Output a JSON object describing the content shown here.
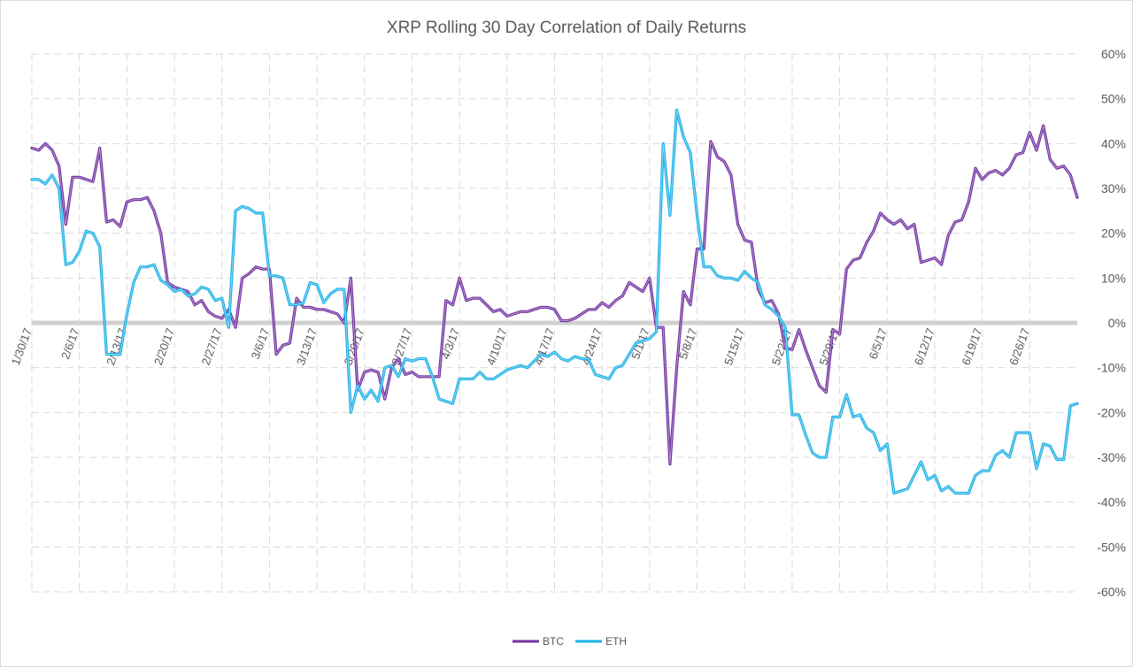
{
  "chart_data": {
    "type": "line",
    "title": "XRP Rolling 30 Day Correlation of Daily Returns",
    "xlabel": "",
    "ylabel": "",
    "x_start": "1/30/17",
    "x_end": "7/1/17",
    "x_tick_labels": [
      "1/30/17",
      "2/6/17",
      "2/13/17",
      "2/20/17",
      "2/27/17",
      "3/6/17",
      "3/13/17",
      "3/20/17",
      "3/27/17",
      "4/3/17",
      "4/10/17",
      "4/17/17",
      "4/24/17",
      "5/1/17",
      "5/8/17",
      "5/15/17",
      "5/22/17",
      "5/29/17",
      "6/5/17",
      "6/12/17",
      "6/19/17",
      "6/26/17"
    ],
    "y_tick_labels": [
      "60%",
      "50%",
      "40%",
      "30%",
      "20%",
      "10%",
      "0%",
      "-10%",
      "-20%",
      "-30%",
      "-40%",
      "-50%",
      "-60%"
    ],
    "ylim": [
      -60,
      60
    ],
    "y_unit": "%",
    "grid": true,
    "legend_position": "bottom-center",
    "series": [
      {
        "name": "BTC",
        "color": "#7030a0",
        "values": [
          39,
          38.5,
          40,
          38.5,
          35,
          22,
          32.5,
          32.5,
          32,
          31.5,
          39,
          22.5,
          23,
          21.5,
          27,
          27.5,
          27.5,
          28,
          25,
          20,
          9,
          8,
          7.5,
          7,
          4,
          5,
          2.5,
          1.5,
          1,
          3,
          -1,
          10,
          11,
          12.5,
          12,
          12,
          -7,
          -5,
          -4.5,
          5.5,
          3.5,
          3.5,
          3,
          3,
          2.5,
          2,
          0,
          10,
          -15,
          -11,
          -10.5,
          -11,
          -17,
          -10,
          -8,
          -11.5,
          -11,
          -12,
          -12,
          -12,
          -12,
          5,
          4,
          10,
          5,
          5.5,
          5.5,
          4,
          2.5,
          3,
          1.5,
          2,
          2.5,
          2.5,
          3,
          3.5,
          3.5,
          3,
          0.5,
          0.5,
          1,
          2,
          3,
          3,
          4.5,
          3.5,
          5,
          6,
          9,
          8,
          7,
          10,
          -1,
          -1,
          -31.5,
          -10,
          7,
          4,
          16.5,
          16.5,
          40.5,
          37,
          36,
          33,
          22,
          18.5,
          18,
          7.5,
          4.5,
          5,
          2,
          -5.5,
          -6,
          -1.5,
          -6,
          -10,
          -14,
          -15.5,
          -1.5,
          -2.5,
          12,
          14,
          14.5,
          18,
          20.5,
          24.5,
          23,
          22,
          23,
          21,
          22,
          13.5,
          14,
          14.5,
          13,
          19.5,
          22.5,
          23,
          27,
          34.5,
          32,
          33.5,
          34,
          33,
          34.5,
          37.5,
          38,
          42.5,
          38.5,
          44,
          36.5,
          34.5,
          35,
          33,
          28
        ]
      },
      {
        "name": "ETH",
        "color": "#1ab0e6",
        "values": [
          32,
          32,
          31,
          33,
          30,
          13,
          13.5,
          16,
          20.5,
          20,
          17,
          -7,
          -7,
          -7,
          2,
          9,
          12.5,
          12.5,
          13,
          9.5,
          8.5,
          7,
          7.5,
          6,
          6.5,
          8,
          7.5,
          5,
          5.5,
          -1,
          25,
          26,
          25.5,
          24.5,
          24.5,
          10.5,
          10.5,
          10,
          4,
          4,
          4.5,
          9,
          8.5,
          4.5,
          6.5,
          7.5,
          7.5,
          -20,
          -14,
          -17,
          -15,
          -17.5,
          -10,
          -9.5,
          -12,
          -8,
          -8.5,
          -8,
          -8,
          -12,
          -17,
          -17.5,
          -18,
          -12.5,
          -12.5,
          -12.5,
          -11,
          -12.5,
          -12.5,
          -11.5,
          -10.5,
          -10,
          -9.5,
          -10,
          -8.5,
          -7,
          -7.5,
          -6.5,
          -8,
          -8.5,
          -7.5,
          -8,
          -8,
          -11.5,
          -12,
          -12.5,
          -10,
          -9.5,
          -7,
          -4.5,
          -4,
          -3.5,
          -2,
          40,
          24,
          47.5,
          41.5,
          38,
          24,
          12.5,
          12.5,
          10.5,
          10,
          10,
          9.5,
          11.5,
          10,
          9,
          4,
          3,
          1.5,
          -1,
          -20.5,
          -20.5,
          -25,
          -29,
          -30,
          -30,
          -21,
          -21,
          -16,
          -21,
          -20.5,
          -23.5,
          -24.5,
          -28.5,
          -27,
          -38,
          -37.5,
          -37,
          -34,
          -31,
          -35,
          -34,
          -37.5,
          -36.5,
          -38,
          -38,
          -38,
          -34,
          -33,
          -33,
          -29.5,
          -28.5,
          -30,
          -24.5,
          -24.5,
          -24.5,
          -32.5,
          -27,
          -27.5,
          -30.5,
          -30.5,
          -18.5,
          -18
        ]
      }
    ]
  }
}
